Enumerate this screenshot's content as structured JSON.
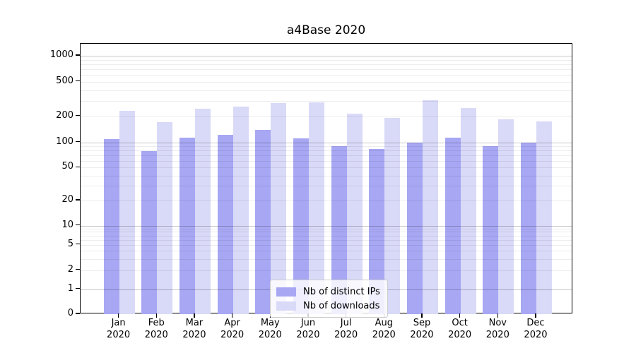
{
  "chart_data": {
    "type": "bar",
    "title": "a4Base 2020",
    "categories": [
      "Jan",
      "Feb",
      "Mar",
      "Apr",
      "May",
      "Jun",
      "Jul",
      "Aug",
      "Sep",
      "Oct",
      "Nov",
      "Dec"
    ],
    "year_label": "2020",
    "series": [
      {
        "name": "Nb of distinct IPs",
        "color": "#a7a7f4",
        "values": [
          110,
          79,
          114,
          123,
          140,
          111,
          90,
          84,
          99,
          114,
          90,
          100
        ]
      },
      {
        "name": "Nb of downloads",
        "color": "#d9d9f8",
        "values": [
          232,
          171,
          243,
          258,
          284,
          290,
          216,
          190,
          306,
          248,
          184,
          176
        ]
      }
    ],
    "yticks": [
      0,
      1,
      2,
      5,
      10,
      20,
      50,
      100,
      200,
      500,
      1000
    ],
    "yscale": "symlog",
    "ylim": [
      0,
      1380
    ],
    "grid": true,
    "legend_position": "lower-center",
    "background_color": "#ffffff",
    "text_color": "#000000"
  }
}
